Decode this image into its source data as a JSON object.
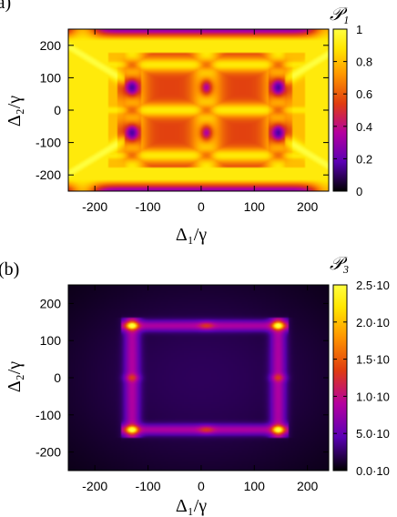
{
  "chart_data": [
    {
      "type": "heatmap",
      "panel_label": "(a)",
      "colorbar_title": "𝒫₁",
      "xlabel": "Δ₁/γ",
      "ylabel": "Δ₂/γ",
      "xlim": [
        -250,
        240
      ],
      "ylim": [
        -250,
        250
      ],
      "xticks": [
        -200,
        -100,
        0,
        100,
        200
      ],
      "xtick_labels": [
        "-200",
        "-100",
        "0",
        "100",
        "200"
      ],
      "yticks": [
        -200,
        -100,
        0,
        100,
        200
      ],
      "ytick_labels": [
        "-200",
        "-100",
        "0",
        "100",
        "200"
      ],
      "colorbar_range": [
        0,
        1
      ],
      "colorbar_ticks": [
        0,
        0.2,
        0.4,
        0.6,
        0.8,
        1
      ],
      "colorbar_tick_labels": [
        "0",
        "0.2",
        "0.4",
        "0.6",
        "0.8",
        "1"
      ],
      "colormap": [
        "#000000",
        "#5a00b4",
        "#b400a0",
        "#e03c10",
        "#ff9600",
        "#ffe600",
        "#ffff40"
      ],
      "features": {
        "resonance_x": [
          -130,
          10,
          145
        ],
        "resonance_y": [
          -140,
          0,
          140
        ],
        "dark_points": [
          [
            -130,
            -140
          ],
          [
            -130,
            0
          ],
          [
            -130,
            140
          ],
          [
            10,
            -140
          ],
          [
            10,
            0
          ],
          [
            10,
            140
          ],
          [
            145,
            -140
          ],
          [
            145,
            0
          ],
          [
            145,
            140
          ]
        ],
        "dark_spots": [
          [
            -130,
            -70
          ],
          [
            -130,
            70
          ],
          [
            10,
            -70
          ],
          [
            10,
            70
          ],
          [
            145,
            -70
          ],
          [
            145,
            70
          ]
        ]
      }
    },
    {
      "type": "heatmap",
      "panel_label": "(b)",
      "colorbar_title": "𝒫₃",
      "xlabel": "Δ₁/γ",
      "ylabel": "Δ₂/γ",
      "xlim": [
        -250,
        240
      ],
      "ylim": [
        -250,
        250
      ],
      "xticks": [
        -200,
        -100,
        0,
        100,
        200
      ],
      "xtick_labels": [
        "-200",
        "-100",
        "0",
        "100",
        "200"
      ],
      "yticks": [
        -200,
        -100,
        0,
        100,
        200
      ],
      "ytick_labels": [
        "-200",
        "-100",
        "0",
        "100",
        "200"
      ],
      "colorbar_range": [
        0,
        0.0025
      ],
      "colorbar_ticks": [
        0,
        0.0005,
        0.001,
        0.0015,
        0.002,
        0.0025
      ],
      "colorbar_tick_labels": [
        "0.0·10",
        "5.0·10",
        "1.0·10",
        "1.5·10",
        "2.0·10",
        "2.5·10"
      ],
      "colormap": [
        "#000000",
        "#5a00b4",
        "#b400a0",
        "#e03c10",
        "#ff9600",
        "#ffe600",
        "#ffff40"
      ],
      "features": {
        "rectangle_x": [
          -130,
          145
        ],
        "rectangle_y": [
          -140,
          140
        ],
        "hot_spots": [
          [
            -130,
            -140
          ],
          [
            -130,
            140
          ],
          [
            145,
            -140
          ],
          [
            145,
            140
          ]
        ],
        "mid_spots": [
          [
            -130,
            0
          ],
          [
            145,
            0
          ],
          [
            10,
            -140
          ],
          [
            10,
            140
          ]
        ]
      }
    }
  ]
}
